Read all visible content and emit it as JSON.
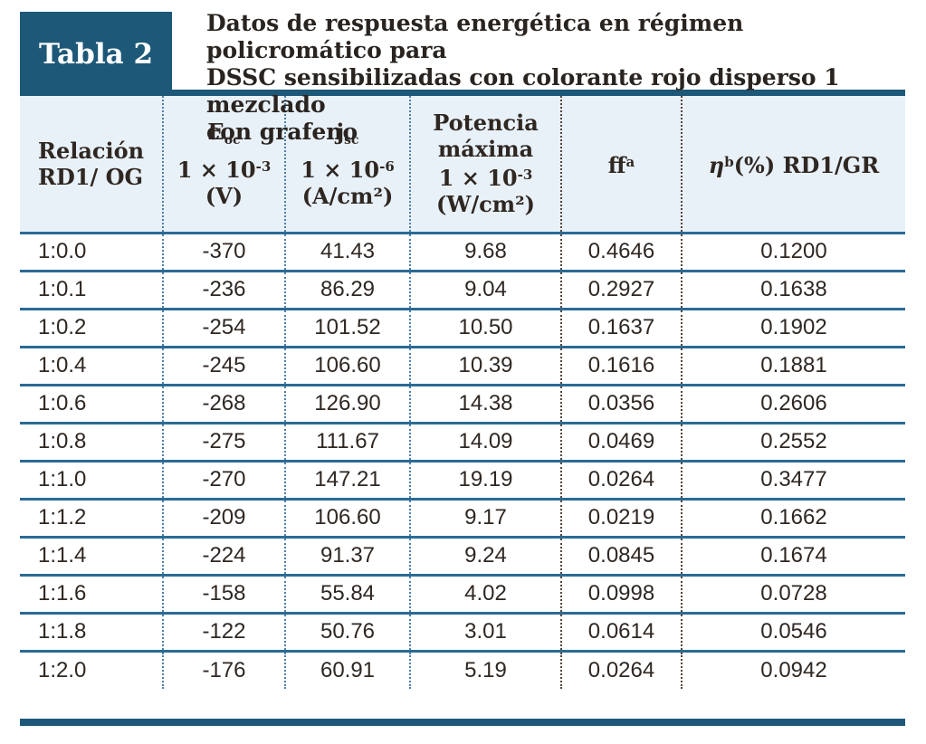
{
  "badge": {
    "label": "Tabla 2"
  },
  "title": {
    "lines": [
      "Datos de respuesta energética en régimen policromático para",
      "DSSC sensibilizadas con colorante rojo disperso 1 mezclado",
      "con grafeno"
    ]
  },
  "colors": {
    "dark_blue": "#1d5878",
    "row_line_blue": "#2a6b96",
    "header_bg": "#e9f1f8",
    "text": "#2f2722",
    "dotted_blue": "#4b7fad",
    "dotted_brown": "#53443c"
  },
  "table": {
    "columns": [
      {
        "name": "relacion-rd1-og",
        "lines": [
          "Relación",
          "RD1/ OG"
        ]
      },
      {
        "name": "eoc",
        "symbol": "E",
        "subscript": "oc",
        "factor": "1 × 10",
        "exponent": "-3",
        "unit": "(V)"
      },
      {
        "name": "jsc",
        "symbol": "j",
        "subscript": "sc",
        "factor": "1 × 10",
        "exponent": "-6",
        "unit": "(A/cm²)"
      },
      {
        "name": "potencia-maxima",
        "lines": [
          "Potencia",
          "máxima"
        ],
        "factor": "1 × 10",
        "exponent": "-3",
        "unit": "(W/cm²)"
      },
      {
        "name": "ff",
        "symbol": "ff",
        "superscript": "a"
      },
      {
        "name": "eta",
        "symbol": "η",
        "superscript": "b",
        "rest": "(%) RD1/GR"
      }
    ],
    "rows": [
      [
        "1:0.0",
        "-370",
        "41.43",
        "9.68",
        "0.4646",
        "0.1200"
      ],
      [
        "1:0.1",
        "-236",
        "86.29",
        "9.04",
        "0.2927",
        "0.1638"
      ],
      [
        "1:0.2",
        "-254",
        "101.52",
        "10.50",
        "0.1637",
        "0.1902"
      ],
      [
        "1:0.4",
        "-245",
        "106.60",
        "10.39",
        "0.1616",
        "0.1881"
      ],
      [
        "1:0.6",
        "-268",
        "126.90",
        "14.38",
        "0.0356",
        "0.2606"
      ],
      [
        "1:0.8",
        "-275",
        "111.67",
        "14.09",
        "0.0469",
        "0.2552"
      ],
      [
        "1:1.0",
        "-270",
        "147.21",
        "19.19",
        "0.0264",
        "0.3477"
      ],
      [
        "1:1.2",
        "-209",
        "106.60",
        "9.17",
        "0.0219",
        "0.1662"
      ],
      [
        "1:1.4",
        "-224",
        "91.37",
        "9.24",
        "0.0845",
        "0.1674"
      ],
      [
        "1:1.6",
        "-158",
        "55.84",
        "4.02",
        "0.0998",
        "0.0728"
      ],
      [
        "1:1.8",
        "-122",
        "50.76",
        "3.01",
        "0.0614",
        "0.0546"
      ],
      [
        "1:2.0",
        "-176",
        "60.91",
        "5.19",
        "0.0264",
        "0.0942"
      ]
    ]
  }
}
